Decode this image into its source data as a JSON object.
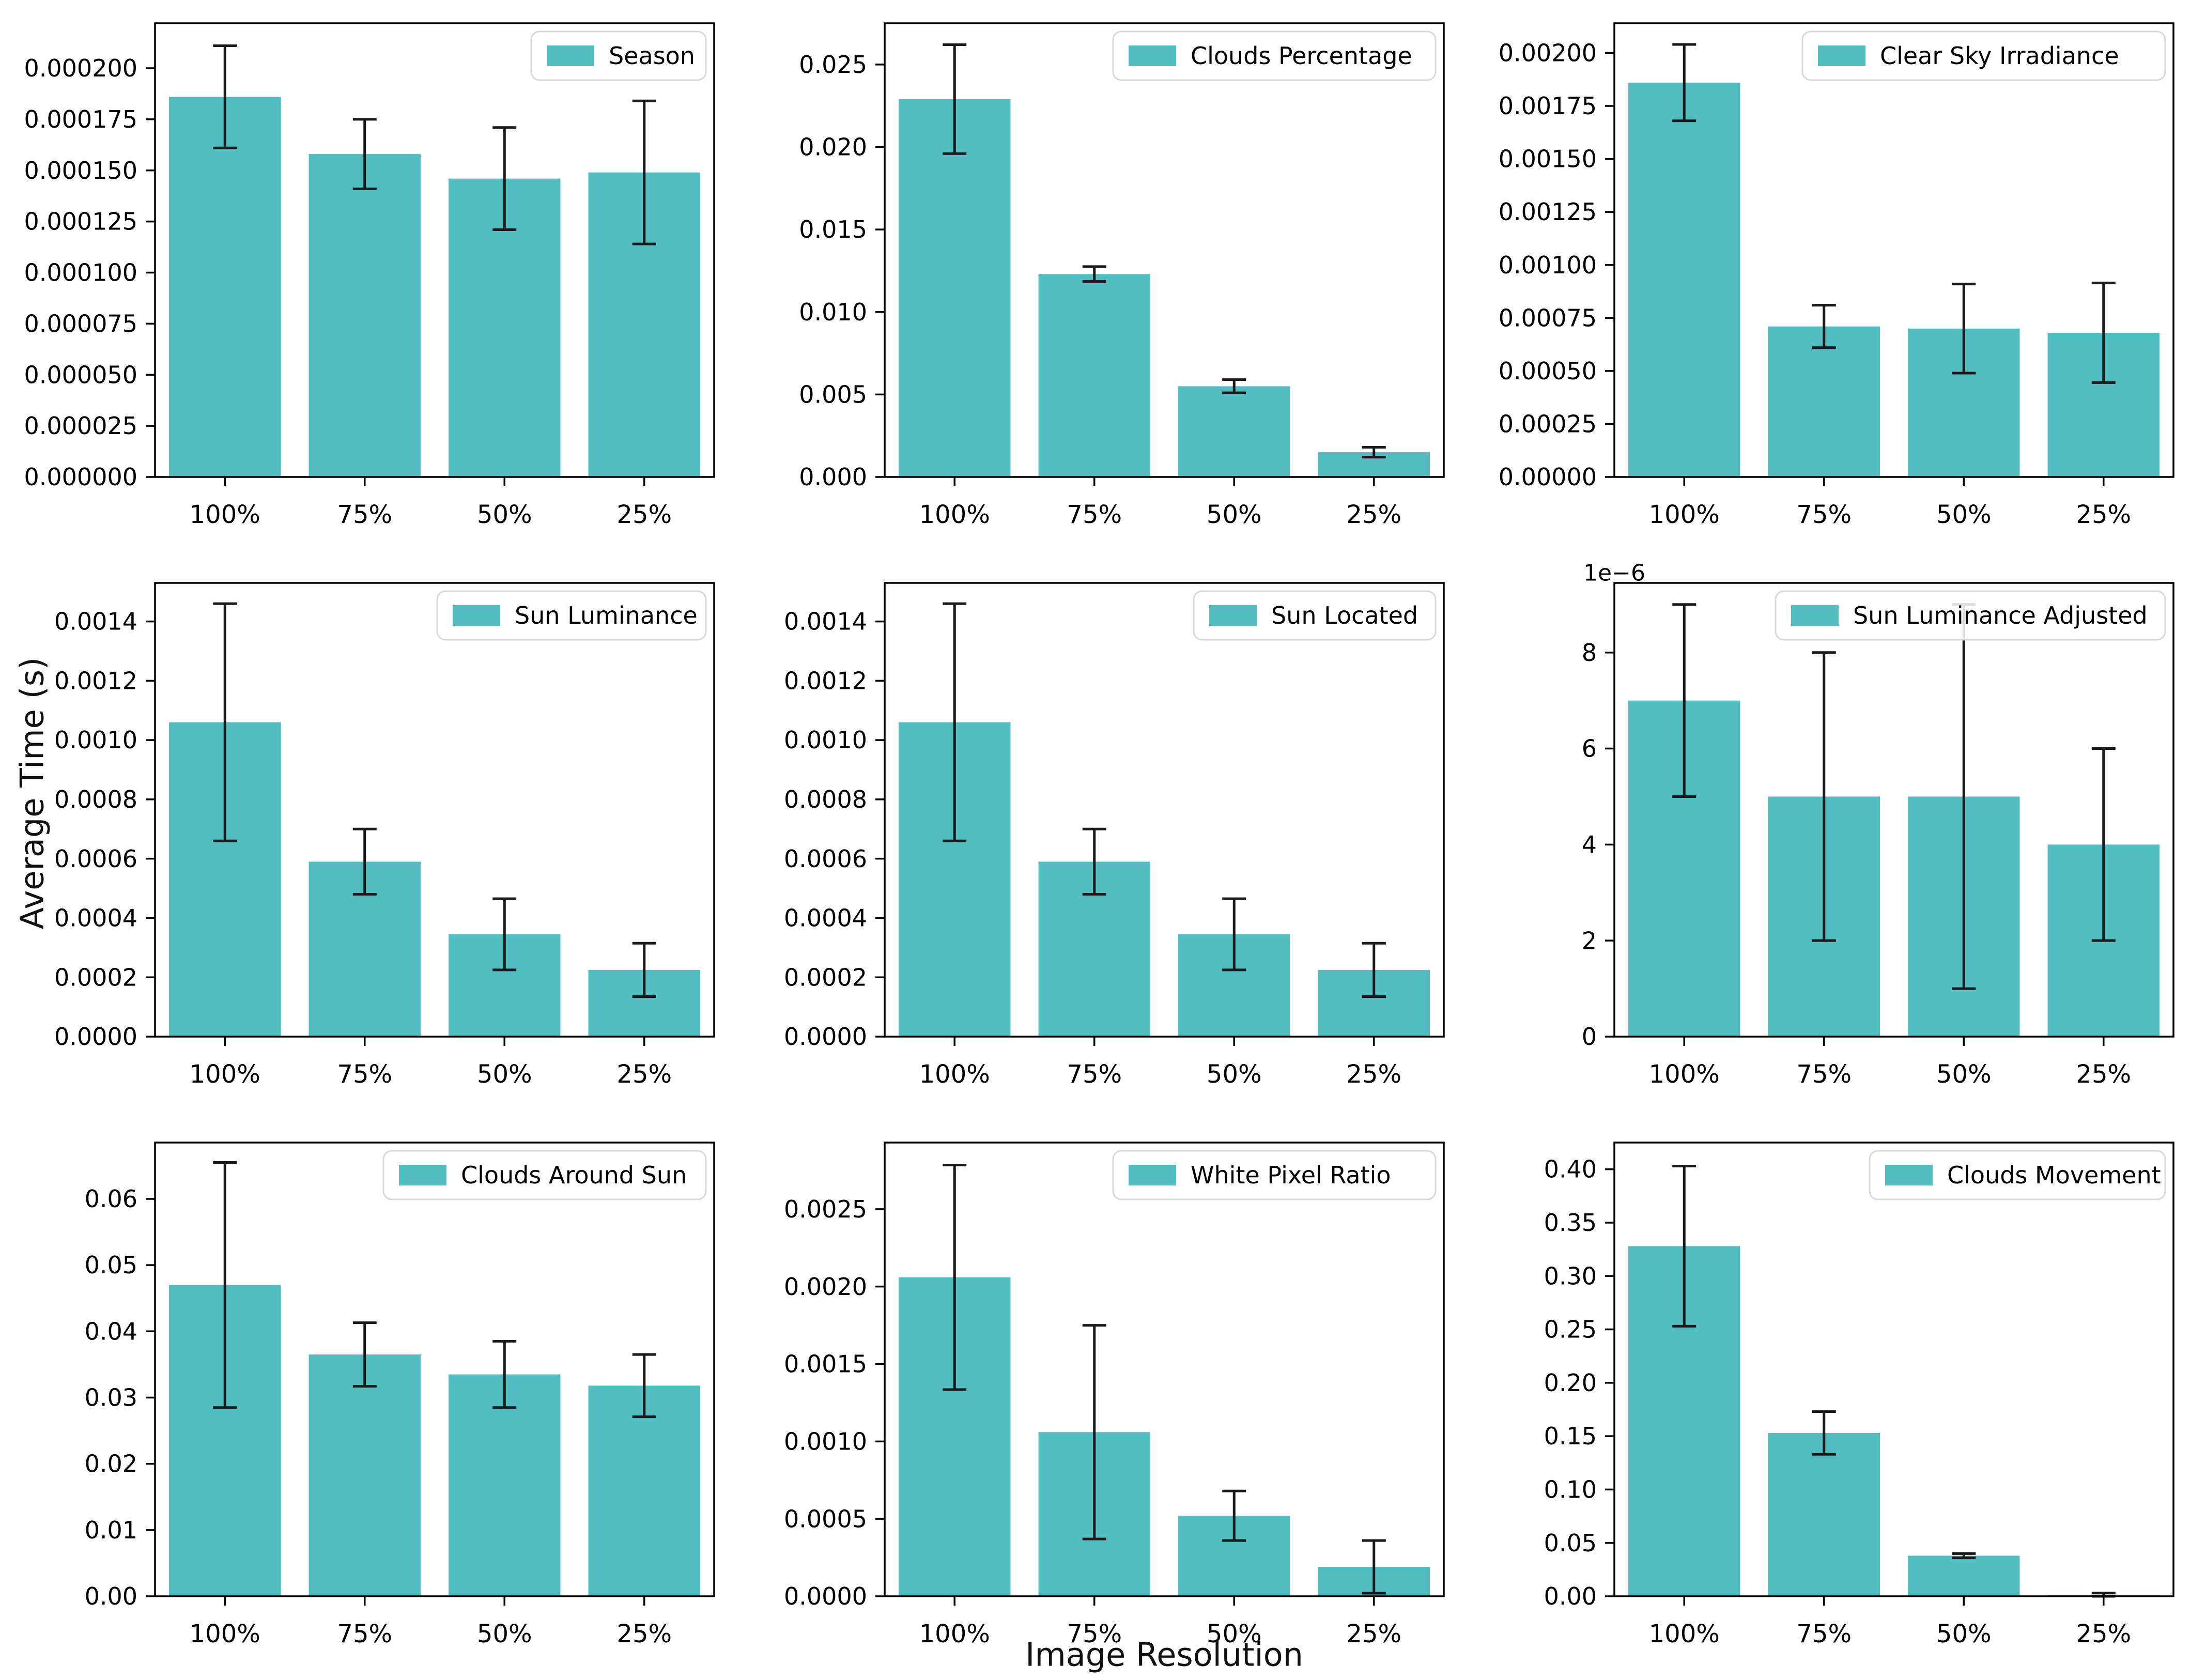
{
  "figure": {
    "ylabel": "Average Time (s)",
    "xlabel": "Image Resolution",
    "background": "#ffffff",
    "bar_color": "#52BEC1",
    "error_color": "#1a1a1a",
    "axis_color": "#000000",
    "legend_border": "#d9d9d9",
    "legend_fill": "#ffffff"
  },
  "chart_data": [
    {
      "type": "bar",
      "legend": "Season",
      "categories": [
        "100%",
        "75%",
        "50%",
        "25%"
      ],
      "values": [
        0.000186,
        0.000158,
        0.000146,
        0.000149
      ],
      "errors": [
        2.5e-05,
        1.7e-05,
        2.5e-05,
        3.5e-05
      ],
      "ylim": [
        0,
        0.000222
      ],
      "yticks": [
        0,
        2.5e-05,
        5e-05,
        7.5e-05,
        0.0001,
        0.000125,
        0.00015,
        0.000175,
        0.0002
      ],
      "ytick_labels": [
        "0.000000",
        "0.000025",
        "0.000050",
        "0.000075",
        "0.000100",
        "0.000125",
        "0.000150",
        "0.000175",
        "0.000200"
      ],
      "offset_label": ""
    },
    {
      "type": "bar",
      "legend": "Clouds Percentage",
      "categories": [
        "100%",
        "75%",
        "50%",
        "25%"
      ],
      "values": [
        0.0229,
        0.0123,
        0.0055,
        0.0015
      ],
      "errors": [
        0.0033,
        0.00045,
        0.0004,
        0.0003
      ],
      "ylim": [
        0,
        0.0275
      ],
      "yticks": [
        0,
        0.005,
        0.01,
        0.015,
        0.02,
        0.025
      ],
      "ytick_labels": [
        "0.000",
        "0.005",
        "0.010",
        "0.015",
        "0.020",
        "0.025"
      ],
      "offset_label": ""
    },
    {
      "type": "bar",
      "legend": "Clear Sky Irradiance",
      "categories": [
        "100%",
        "75%",
        "50%",
        "25%"
      ],
      "values": [
        0.00186,
        0.00071,
        0.0007,
        0.00068
      ],
      "errors": [
        0.00018,
        0.0001,
        0.00021,
        0.000235
      ],
      "ylim": [
        0,
        0.00214
      ],
      "yticks": [
        0,
        0.00025,
        0.0005,
        0.00075,
        0.001,
        0.00125,
        0.0015,
        0.00175,
        0.002
      ],
      "ytick_labels": [
        "0.00000",
        "0.00025",
        "0.00050",
        "0.00075",
        "0.00100",
        "0.00125",
        "0.00150",
        "0.00175",
        "0.00200"
      ],
      "offset_label": ""
    },
    {
      "type": "bar",
      "legend": "Sun Luminance",
      "categories": [
        "100%",
        "75%",
        "50%",
        "25%"
      ],
      "values": [
        0.00106,
        0.00059,
        0.000345,
        0.000225
      ],
      "errors": [
        0.0004,
        0.00011,
        0.00012,
        9e-05
      ],
      "ylim": [
        0,
        0.00153
      ],
      "yticks": [
        0,
        0.0002,
        0.0004,
        0.0006,
        0.0008,
        0.001,
        0.0012,
        0.0014
      ],
      "ytick_labels": [
        "0.0000",
        "0.0002",
        "0.0004",
        "0.0006",
        "0.0008",
        "0.0010",
        "0.0012",
        "0.0014"
      ],
      "offset_label": ""
    },
    {
      "type": "bar",
      "legend": "Sun Located",
      "categories": [
        "100%",
        "75%",
        "50%",
        "25%"
      ],
      "values": [
        0.00106,
        0.00059,
        0.000345,
        0.000225
      ],
      "errors": [
        0.0004,
        0.00011,
        0.00012,
        9e-05
      ],
      "ylim": [
        0,
        0.00153
      ],
      "yticks": [
        0,
        0.0002,
        0.0004,
        0.0006,
        0.0008,
        0.001,
        0.0012,
        0.0014
      ],
      "ytick_labels": [
        "0.0000",
        "0.0002",
        "0.0004",
        "0.0006",
        "0.0008",
        "0.0010",
        "0.0012",
        "0.0014"
      ],
      "offset_label": ""
    },
    {
      "type": "bar",
      "legend": "Sun Luminance Adjusted",
      "categories": [
        "100%",
        "75%",
        "50%",
        "25%"
      ],
      "values": [
        7e-06,
        5e-06,
        5e-06,
        4e-06
      ],
      "errors": [
        2e-06,
        3e-06,
        4e-06,
        2e-06
      ],
      "ylim": [
        0,
        9.45e-06
      ],
      "yticks": [
        0,
        2e-06,
        4e-06,
        6e-06,
        8e-06
      ],
      "ytick_labels": [
        "0",
        "2",
        "4",
        "6",
        "8"
      ],
      "offset_label": "1e−6"
    },
    {
      "type": "bar",
      "legend": "Clouds Around Sun",
      "categories": [
        "100%",
        "75%",
        "50%",
        "25%"
      ],
      "values": [
        0.047,
        0.0365,
        0.0335,
        0.0318
      ],
      "errors": [
        0.0185,
        0.0048,
        0.005,
        0.0047
      ],
      "ylim": [
        0,
        0.0685
      ],
      "yticks": [
        0,
        0.01,
        0.02,
        0.03,
        0.04,
        0.05,
        0.06
      ],
      "ytick_labels": [
        "0.00",
        "0.01",
        "0.02",
        "0.03",
        "0.04",
        "0.05",
        "0.06"
      ],
      "offset_label": ""
    },
    {
      "type": "bar",
      "legend": "White Pixel Ratio",
      "categories": [
        "100%",
        "75%",
        "50%",
        "25%"
      ],
      "values": [
        0.00206,
        0.00106,
        0.00052,
        0.00019
      ],
      "errors": [
        0.000725,
        0.00069,
        0.00016,
        0.00017
      ],
      "ylim": [
        0,
        0.00293
      ],
      "yticks": [
        0,
        0.0005,
        0.001,
        0.0015,
        0.002,
        0.0025
      ],
      "ytick_labels": [
        "0.0000",
        "0.0005",
        "0.0010",
        "0.0015",
        "0.0020",
        "0.0025"
      ],
      "offset_label": ""
    },
    {
      "type": "bar",
      "legend": "Clouds Movement",
      "categories": [
        "100%",
        "75%",
        "50%",
        "25%"
      ],
      "values": [
        0.328,
        0.153,
        0.038,
        0.001
      ],
      "errors": [
        0.075,
        0.02,
        0.002,
        0.002
      ],
      "ylim": [
        0,
        0.425
      ],
      "yticks": [
        0,
        0.05,
        0.1,
        0.15,
        0.2,
        0.25,
        0.3,
        0.35,
        0.4
      ],
      "ytick_labels": [
        "0.00",
        "0.05",
        "0.10",
        "0.15",
        "0.20",
        "0.25",
        "0.30",
        "0.35",
        "0.40"
      ],
      "offset_label": ""
    }
  ]
}
